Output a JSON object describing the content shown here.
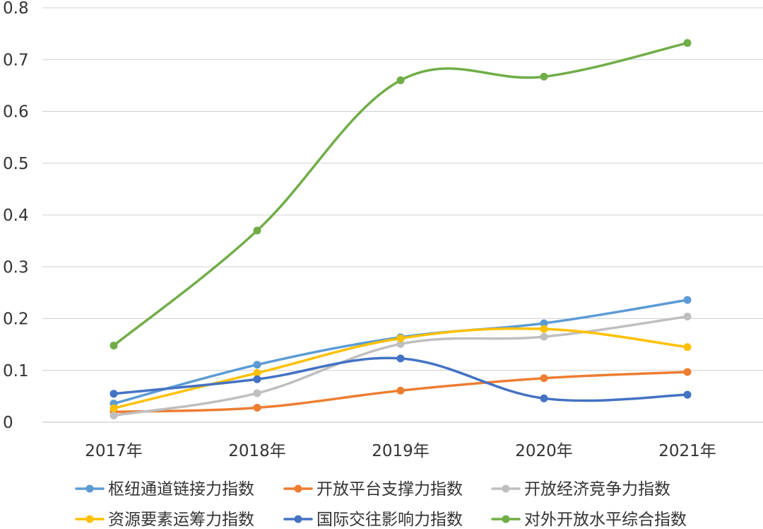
{
  "chart_data": {
    "type": "line",
    "categories": [
      "2017年",
      "2018年",
      "2019年",
      "2020年",
      "2021年"
    ],
    "ylim": [
      0,
      0.8
    ],
    "yticks": [
      "0",
      "0.1",
      "0.2",
      "0.3",
      "0.4",
      "0.5",
      "0.6",
      "0.7",
      "0.8"
    ],
    "grid": true,
    "smooth": true,
    "legend_position": "bottom",
    "series": [
      {
        "name": "枢纽通道链接力指数",
        "color": "#5B9BD5",
        "values": [
          0.036,
          0.111,
          0.164,
          0.191,
          0.236
        ]
      },
      {
        "name": "开放平台支撑力指数",
        "color": "#ED7D31",
        "values": [
          0.02,
          0.028,
          0.061,
          0.085,
          0.097
        ]
      },
      {
        "name": "开放经济竞争力指数",
        "color": "#BFBFBF",
        "values": [
          0.013,
          0.056,
          0.151,
          0.165,
          0.204
        ]
      },
      {
        "name": "资源要素运筹力指数",
        "color": "#FFC000",
        "values": [
          0.027,
          0.095,
          0.162,
          0.18,
          0.145
        ]
      },
      {
        "name": "国际交往影响力指数",
        "color": "#4472C4",
        "values": [
          0.055,
          0.083,
          0.123,
          0.046,
          0.053
        ]
      },
      {
        "name": "对外开放水平综合指数",
        "color": "#70AD47",
        "values": [
          0.148,
          0.37,
          0.66,
          0.667,
          0.732
        ]
      }
    ]
  }
}
